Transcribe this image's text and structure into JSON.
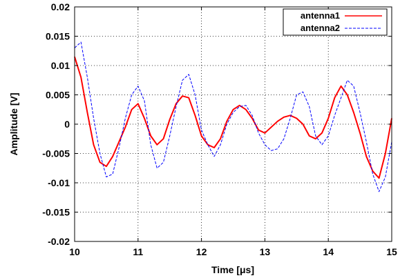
{
  "chart_data": {
    "type": "line",
    "xlabel": "Time [μs]",
    "ylabel": "Amplitude [V]",
    "xlim": [
      10,
      15
    ],
    "ylim": [
      -0.02,
      0.02
    ],
    "x_ticks": [
      "10",
      "11",
      "12",
      "13",
      "14",
      "15"
    ],
    "y_ticks": [
      "-0.02",
      "-0.015",
      "-0.01",
      "-0.005",
      "0",
      "0.005",
      "0.01",
      "0.015",
      "0.02"
    ],
    "grid": true,
    "legend_position": "top-right",
    "x": [
      10.0,
      10.1,
      10.2,
      10.3,
      10.4,
      10.5,
      10.6,
      10.7,
      10.8,
      10.9,
      11.0,
      11.1,
      11.2,
      11.3,
      11.4,
      11.5,
      11.6,
      11.7,
      11.8,
      11.9,
      12.0,
      12.1,
      12.2,
      12.3,
      12.4,
      12.5,
      12.6,
      12.7,
      12.8,
      12.9,
      13.0,
      13.1,
      13.2,
      13.3,
      13.4,
      13.5,
      13.6,
      13.7,
      13.8,
      13.9,
      14.0,
      14.1,
      14.2,
      14.3,
      14.4,
      14.5,
      14.6,
      14.7,
      14.8,
      14.9,
      15.0
    ],
    "series": [
      {
        "name": "antenna1",
        "color": "#ff0000",
        "style": "solid",
        "values": [
          0.0115,
          0.008,
          0.002,
          -0.0035,
          -0.0065,
          -0.0072,
          -0.0055,
          -0.003,
          -0.0005,
          0.0025,
          0.0035,
          0.001,
          -0.002,
          -0.0035,
          -0.0025,
          0.0008,
          0.0035,
          0.0048,
          0.0045,
          0.0015,
          -0.002,
          -0.0035,
          -0.004,
          -0.0025,
          0.0005,
          0.0025,
          0.0032,
          0.0025,
          0.001,
          -0.001,
          -0.0015,
          -0.0005,
          0.0005,
          0.0012,
          0.0015,
          0.001,
          0.0,
          -0.002,
          -0.0025,
          -0.0015,
          0.001,
          0.0045,
          0.0065,
          0.005,
          0.002,
          -0.0015,
          -0.0055,
          -0.008,
          -0.0092,
          -0.005,
          0.001
        ]
      },
      {
        "name": "antenna2",
        "color": "#0000ff",
        "style": "dashed",
        "values": [
          0.013,
          0.014,
          0.008,
          0.001,
          -0.005,
          -0.009,
          -0.0085,
          -0.004,
          0.001,
          0.005,
          0.0065,
          0.004,
          -0.0035,
          -0.0075,
          -0.0065,
          -0.002,
          0.003,
          0.0075,
          0.0085,
          0.005,
          -0.001,
          -0.0035,
          -0.0055,
          -0.0035,
          0.0,
          0.002,
          0.003,
          0.0032,
          0.0015,
          -0.0015,
          -0.0035,
          -0.0045,
          -0.0042,
          -0.0025,
          0.001,
          0.005,
          0.0055,
          0.003,
          -0.002,
          -0.0035,
          -0.002,
          0.0015,
          0.0045,
          0.0075,
          0.0065,
          0.002,
          -0.003,
          -0.0085,
          -0.0115,
          -0.009,
          -0.003
        ]
      }
    ]
  }
}
